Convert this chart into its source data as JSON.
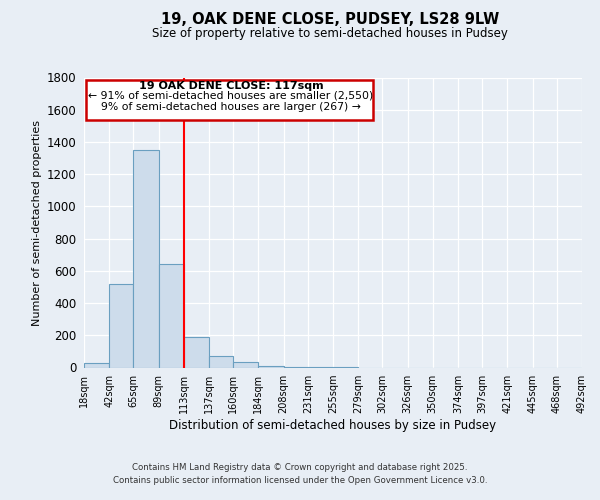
{
  "title1": "19, OAK DENE CLOSE, PUDSEY, LS28 9LW",
  "title2": "Size of property relative to semi-detached houses in Pudsey",
  "xlabel": "Distribution of semi-detached houses by size in Pudsey",
  "ylabel": "Number of semi-detached properties",
  "bar_edges": [
    18,
    42,
    65,
    89,
    113,
    137,
    160,
    184,
    208,
    231,
    255,
    279,
    302,
    326,
    350,
    374,
    397,
    421,
    445,
    468,
    492
  ],
  "bar_heights": [
    30,
    520,
    1350,
    640,
    190,
    70,
    35,
    10,
    5,
    2,
    1,
    0,
    0,
    0,
    0,
    0,
    0,
    0,
    0,
    0
  ],
  "bar_color": "#cddceb",
  "bar_edge_color": "#6a9fc0",
  "red_line_x": 113,
  "ylim": [
    0,
    1800
  ],
  "yticks": [
    0,
    200,
    400,
    600,
    800,
    1000,
    1200,
    1400,
    1600,
    1800
  ],
  "annotation_title": "19 OAK DENE CLOSE: 117sqm",
  "annotation_line1": "← 91% of semi-detached houses are smaller (2,550)",
  "annotation_line2": "9% of semi-detached houses are larger (267) →",
  "annotation_box_edge": "#cc0000",
  "footer1": "Contains HM Land Registry data © Crown copyright and database right 2025.",
  "footer2": "Contains public sector information licensed under the Open Government Licence v3.0.",
  "background_color": "#e8eef5",
  "grid_color": "#ffffff"
}
